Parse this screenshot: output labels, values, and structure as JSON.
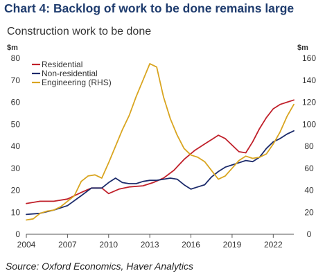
{
  "chart_data": {
    "type": "line",
    "title": "Chart 4: Backlog of work to be done remains large",
    "subtitle": "Construction work to be done",
    "left_unit": "$m",
    "right_unit": "$m",
    "source": "Source: Oxford Economics, Haver Analytics",
    "xlim": [
      2004,
      2023.5
    ],
    "ylim_left": [
      0,
      80
    ],
    "ylim_right": [
      0,
      160
    ],
    "x_ticks": [
      2004,
      2007,
      2010,
      2013,
      2016,
      2019,
      2022
    ],
    "y_ticks_left": [
      0,
      10,
      20,
      30,
      40,
      50,
      60,
      70,
      80
    ],
    "y_ticks_right": [
      0,
      20,
      40,
      60,
      80,
      100,
      120,
      140,
      160
    ],
    "grid": false,
    "legend_position": "top-left",
    "series": [
      {
        "name": "Residential",
        "axis": "left",
        "color": "#c0202a",
        "x": [
          2004,
          2005,
          2006,
          2007,
          2008,
          2008.75,
          2009.5,
          2010,
          2010.75,
          2011.5,
          2012.5,
          2013.25,
          2014,
          2014.75,
          2015.5,
          2016.25,
          2017,
          2017.5,
          2018,
          2018.5,
          2019,
          2019.5,
          2020,
          2020.5,
          2021,
          2021.5,
          2022,
          2022.5,
          2023,
          2023.5
        ],
        "values": [
          14,
          15,
          15,
          16,
          19,
          21,
          21,
          18.5,
          20.5,
          21.5,
          22,
          23.5,
          25.5,
          29,
          34,
          38,
          41,
          43,
          45,
          43.5,
          40.5,
          37.5,
          37,
          42,
          48,
          53,
          57,
          59,
          60,
          61
        ]
      },
      {
        "name": "Non-residential",
        "axis": "left",
        "color": "#1c2b6b",
        "x": [
          2004,
          2005,
          2006,
          2007,
          2008,
          2008.75,
          2009.5,
          2010,
          2010.5,
          2011,
          2011.5,
          2012,
          2012.5,
          2013,
          2013.5,
          2014,
          2014.5,
          2015,
          2015.5,
          2016,
          2016.5,
          2017,
          2017.5,
          2018,
          2018.5,
          2019,
          2019.5,
          2020,
          2020.5,
          2021,
          2021.5,
          2022,
          2022.5,
          2023,
          2023.5
        ],
        "values": [
          9,
          9.5,
          11,
          13,
          17.5,
          21,
          21,
          23.5,
          25.5,
          23.5,
          23,
          23,
          24,
          24.5,
          24.5,
          25,
          25.5,
          25,
          22.5,
          20.5,
          21.5,
          22.5,
          26,
          28.5,
          30.5,
          31.5,
          32.5,
          33.5,
          33,
          35,
          39,
          42,
          43.5,
          45.5,
          47
        ]
      },
      {
        "name": "Engineering (RHS)",
        "axis": "right",
        "color": "#d9a520",
        "x": [
          2004,
          2004.5,
          2005,
          2005.5,
          2006,
          2006.5,
          2007,
          2007.5,
          2008,
          2008.5,
          2009,
          2009.5,
          2010,
          2010.5,
          2011,
          2011.5,
          2012,
          2012.5,
          2013,
          2013.5,
          2014,
          2014.5,
          2015,
          2015.5,
          2016,
          2016.5,
          2017,
          2017.5,
          2018,
          2018.5,
          2019,
          2019.5,
          2020,
          2020.5,
          2021,
          2021.5,
          2022,
          2022.5,
          2023,
          2023.5
        ],
        "values": [
          13,
          14,
          19,
          21,
          22,
          25,
          30,
          35,
          48,
          53,
          54,
          51,
          65,
          80,
          95,
          108,
          125,
          140,
          155,
          152,
          125,
          105,
          90,
          78,
          72,
          70,
          66,
          58,
          50,
          53,
          60,
          67,
          71,
          69,
          70,
          73,
          82,
          93,
          107,
          118
        ]
      }
    ]
  }
}
